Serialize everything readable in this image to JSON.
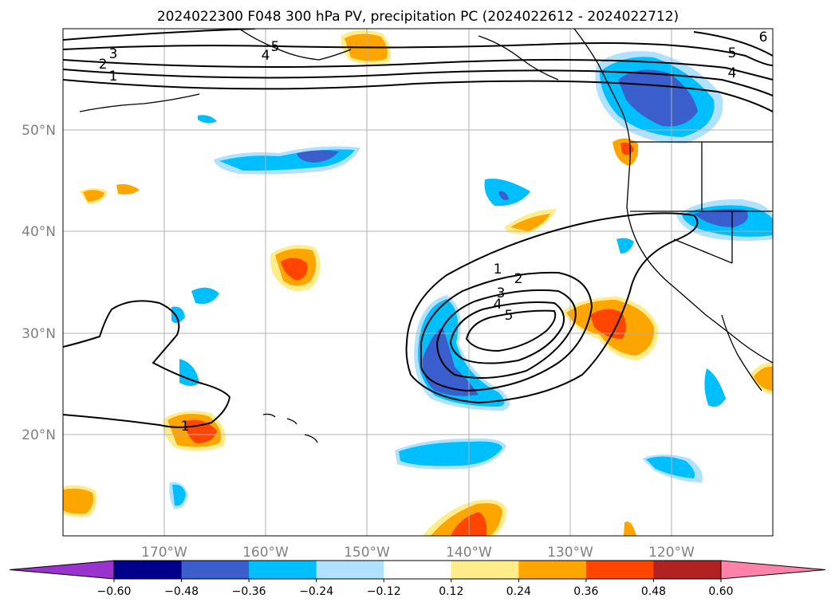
{
  "title": "2024022300 F048 300 hPa PV, precipitation PC (2024022612 - 2024022712)",
  "map": {
    "lon_range": [
      -180,
      -110
    ],
    "lat_range": [
      10,
      60
    ],
    "lon_ticks": [
      {
        "value": -170,
        "label": "170°W"
      },
      {
        "value": -160,
        "label": "160°W"
      },
      {
        "value": -150,
        "label": "150°W"
      },
      {
        "value": -140,
        "label": "140°W"
      },
      {
        "value": -130,
        "label": "130°W"
      },
      {
        "value": -120,
        "label": "120°W"
      }
    ],
    "lat_ticks": [
      {
        "value": 20,
        "label": "20°N"
      },
      {
        "value": 30,
        "label": "30°N"
      },
      {
        "value": 40,
        "label": "40°N"
      },
      {
        "value": 50,
        "label": "50°N"
      }
    ],
    "gridlines": true
  },
  "pv_contour_labels": [
    "1",
    "2",
    "3",
    "4",
    "5",
    "6"
  ],
  "colorbar": {
    "colors": [
      "#9a32cd",
      "#00008b",
      "#3a5fcd",
      "#00bfff",
      "#b0e2ff",
      "#ffffff",
      "#ffec8b",
      "#ffa500",
      "#ff4500",
      "#b22222",
      "#ff82ab"
    ],
    "ticks": [
      "−0.60",
      "−0.48",
      "−0.36",
      "−0.24",
      "−0.12",
      "0.12",
      "0.24",
      "0.36",
      "0.48",
      "0.60"
    ],
    "extend": "both"
  }
}
